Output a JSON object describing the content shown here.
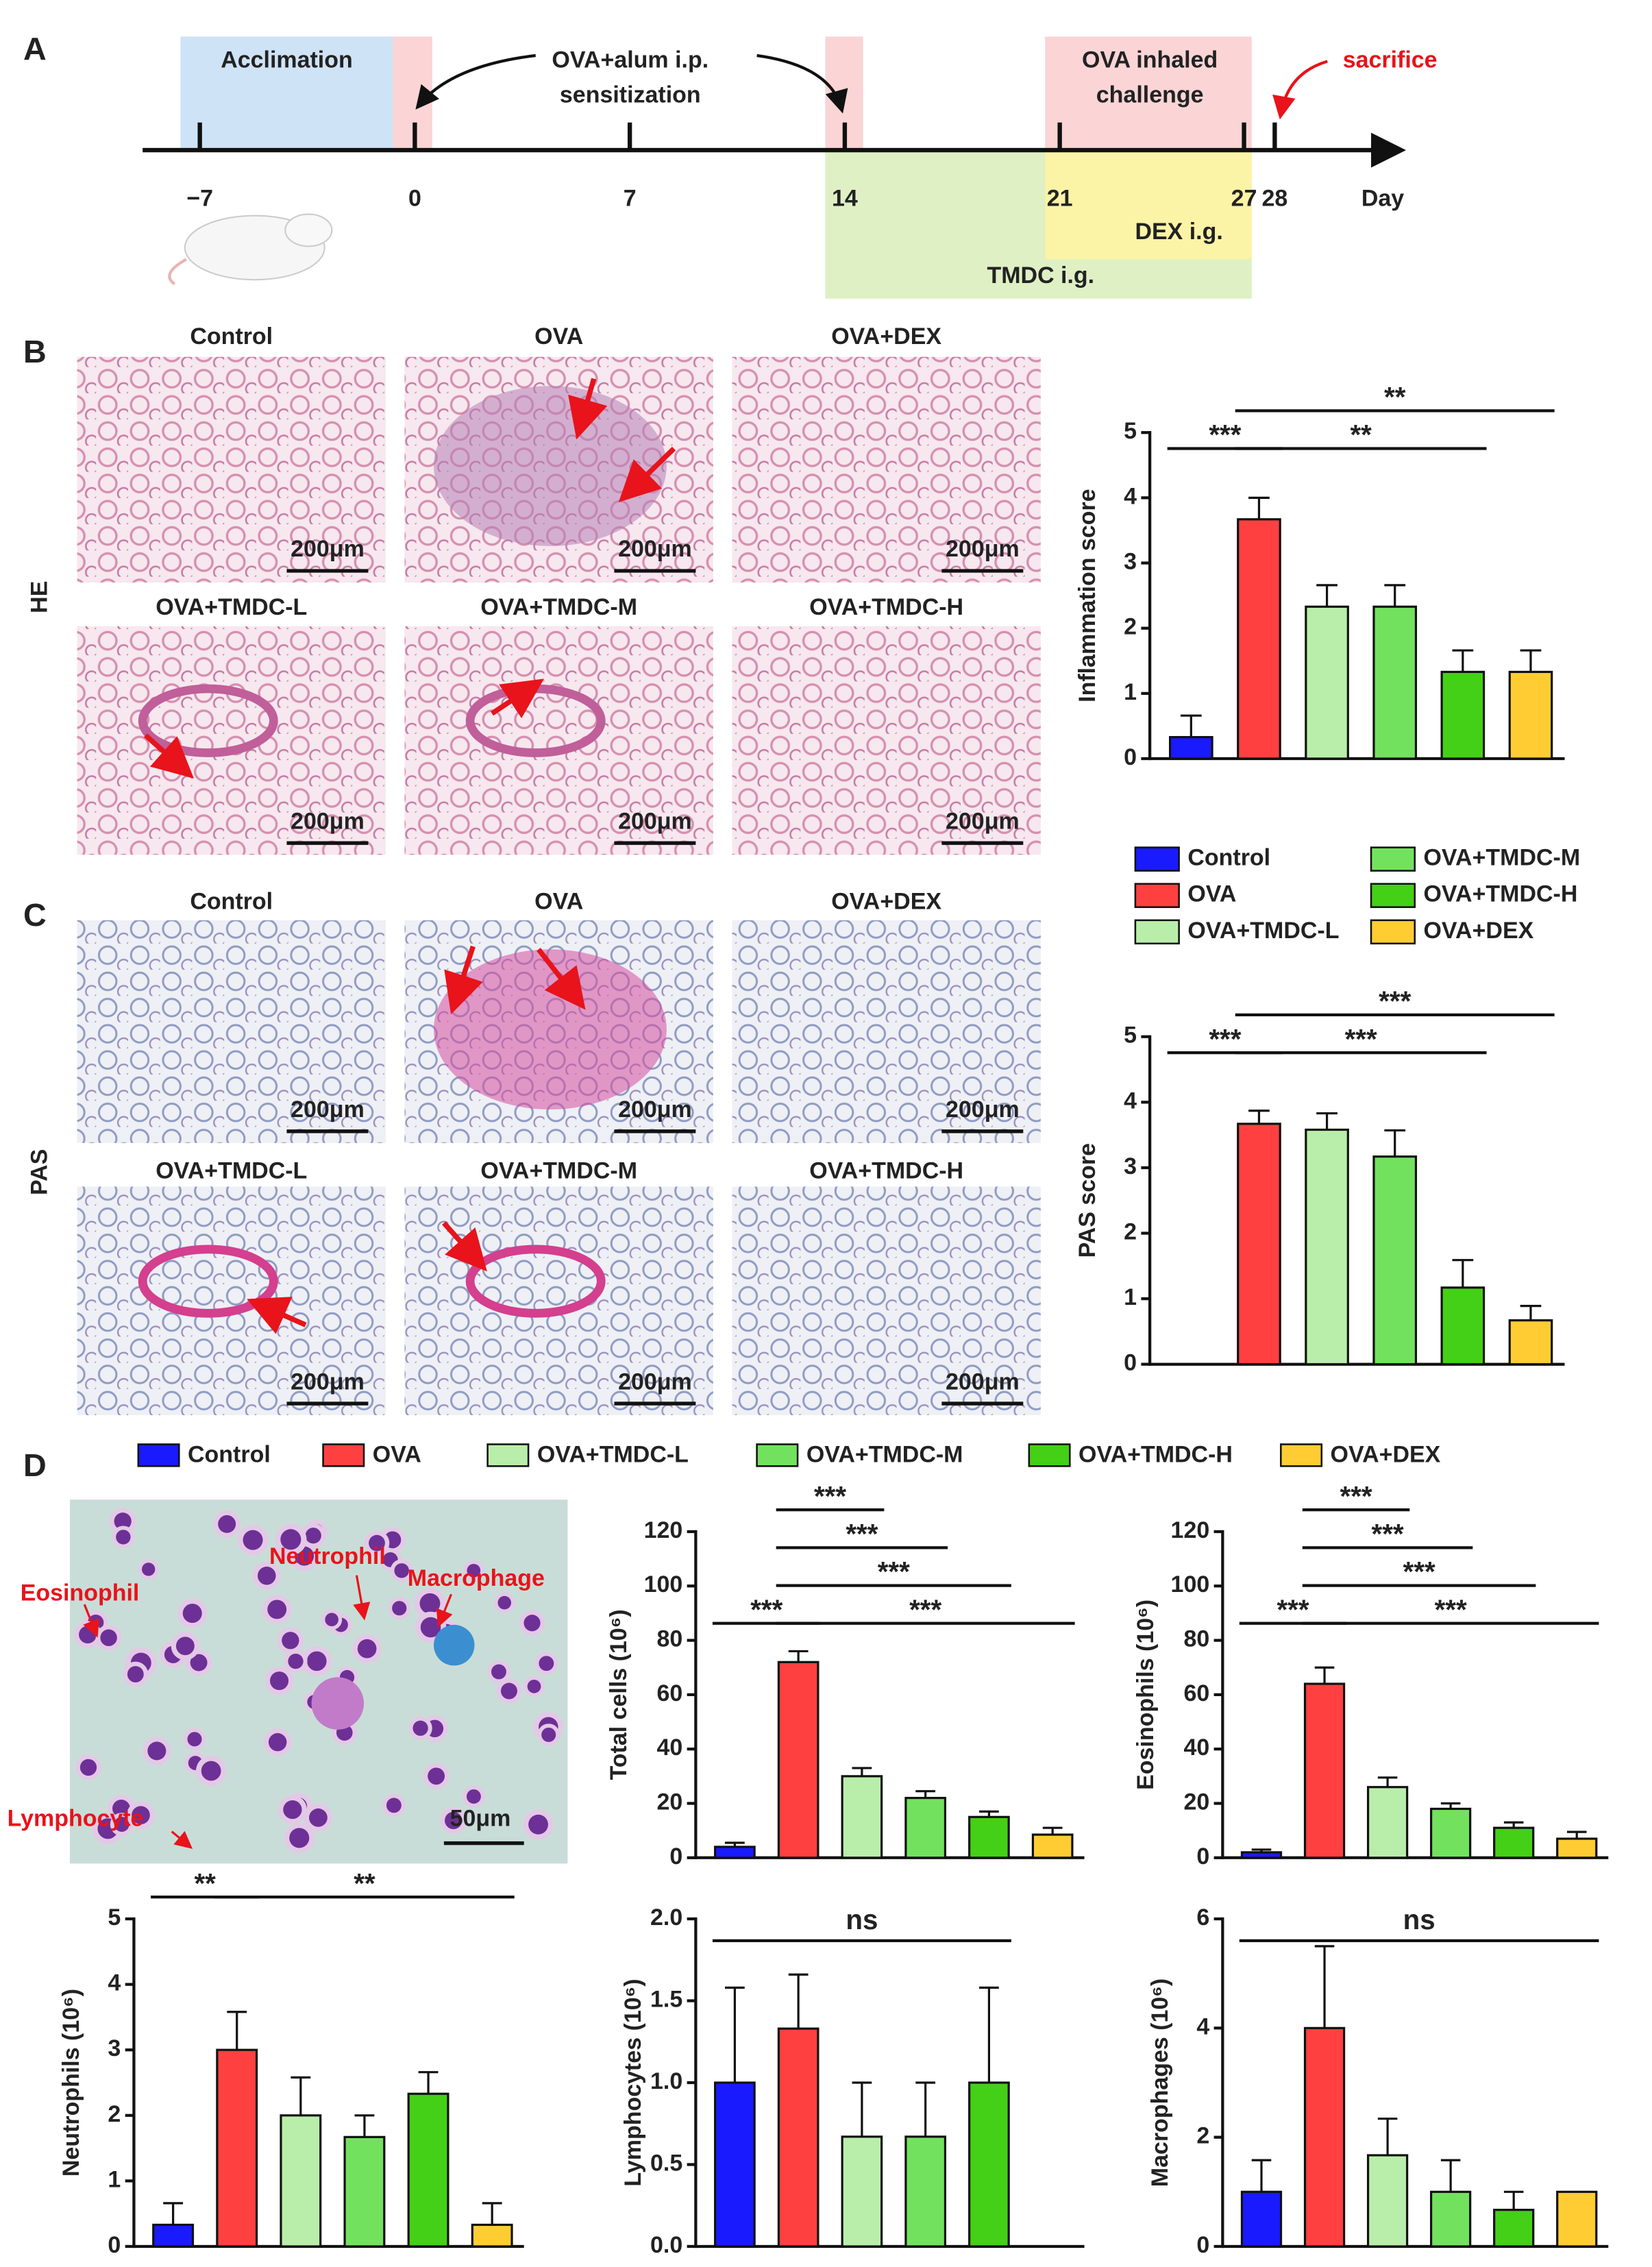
{
  "letters": [
    "A",
    "B",
    "C",
    "D"
  ],
  "timeline": {
    "acclimation": "Acclimation",
    "sensitization": [
      "OVA+alum i.p.",
      "sensitization"
    ],
    "challenge": [
      "OVA inhaled",
      "challenge"
    ],
    "sacrifice": "sacrifice",
    "days": [
      {
        "value": -7,
        "label": "−7"
      },
      0,
      7,
      14,
      21,
      27,
      28
    ],
    "unit": "Day",
    "dex": "DEX i.g.",
    "tmdc": "TMDC i.g."
  },
  "panels": {
    "he": {
      "label": "HE",
      "images": [
        {
          "title": "Control",
          "scale": "200μm"
        },
        {
          "title": "OVA",
          "scale": "200μm"
        },
        {
          "title": "OVA+DEX",
          "scale": "200μm"
        },
        {
          "title": "OVA+TMDC-L",
          "scale": "200μm"
        },
        {
          "title": "OVA+TMDC-M",
          "scale": "200μm"
        },
        {
          "title": "OVA+TMDC-H",
          "scale": "200μm"
        }
      ]
    },
    "pas": {
      "label": "PAS",
      "images": [
        {
          "title": "Control",
          "scale": "200μm"
        },
        {
          "title": "OVA",
          "scale": "200μm"
        },
        {
          "title": "OVA+DEX",
          "scale": "200μm"
        },
        {
          "title": "OVA+TMDC-L",
          "scale": "200μm"
        },
        {
          "title": "OVA+TMDC-M",
          "scale": "200μm"
        },
        {
          "title": "OVA+TMDC-H",
          "scale": "200μm"
        }
      ]
    }
  },
  "cytospin": {
    "labels": [
      "Eosinophil",
      "Neutrophil",
      "Macrophage",
      "Lymphocyte"
    ],
    "scale": "50μm"
  },
  "chart_data": [
    {
      "type": "bar",
      "y_label": "Inflammation score",
      "categories": [
        "Control",
        "OVA",
        "OVA+TMDC-L",
        "OVA+TMDC-M",
        "OVA+TMDC-H",
        "OVA+DEX"
      ],
      "colors": [
        "#1a1aff",
        "#ff4040",
        "#b9eeaa",
        "#72e25e",
        "#44d016",
        "#ffcc33"
      ],
      "values": [
        0.33,
        3.67,
        2.33,
        2.33,
        1.33,
        1.33
      ],
      "errors": [
        0.33,
        0.33,
        0.33,
        0.33,
        0.33,
        0.33
      ],
      "ylim": [
        0,
        5
      ],
      "yticks": [
        0,
        1,
        2,
        3,
        4,
        5
      ],
      "significance": [
        {
          "from": 0,
          "to": 1,
          "label": "***"
        },
        {
          "from": 1,
          "to": 4,
          "label": "**"
        },
        {
          "from": 1,
          "to": 5,
          "label": "**"
        }
      ]
    },
    {
      "type": "bar",
      "y_label": "PAS score",
      "categories": [
        "Control",
        "OVA",
        "OVA+TMDC-L",
        "OVA+TMDC-M",
        "OVA+TMDC-H",
        "OVA+DEX"
      ],
      "colors": [
        "#1a1aff",
        "#ff4040",
        "#b9eeaa",
        "#72e25e",
        "#44d016",
        "#ffcc33"
      ],
      "values": [
        0,
        3.67,
        3.58,
        3.17,
        1.17,
        0.67
      ],
      "errors": [
        null,
        0.2,
        0.25,
        0.4,
        0.42,
        0.22
      ],
      "ylim": [
        0,
        5
      ],
      "yticks": [
        0,
        1,
        2,
        3,
        4,
        5
      ],
      "significance": [
        {
          "from": 0,
          "to": 1,
          "label": "***"
        },
        {
          "from": 1,
          "to": 4,
          "label": "***"
        },
        {
          "from": 1,
          "to": 5,
          "label": "***"
        }
      ]
    },
    {
      "type": "bar",
      "y_label": "Total cells (10⁶)",
      "categories": [
        "Control",
        "OVA",
        "OVA+TMDC-L",
        "OVA+TMDC-M",
        "OVA+TMDC-H",
        "OVA+DEX"
      ],
      "colors": [
        "#1a1aff",
        "#ff4040",
        "#b9eeaa",
        "#72e25e",
        "#44d016",
        "#ffcc33"
      ],
      "values": [
        4,
        72,
        30,
        22,
        15,
        8.5
      ],
      "errors": [
        1.5,
        4,
        3,
        2.5,
        2,
        2.5
      ],
      "ylim": [
        0,
        120
      ],
      "yticks": [
        0,
        20,
        40,
        60,
        80,
        100,
        120
      ],
      "significance": [
        {
          "from": 0,
          "to": 1,
          "label": "***"
        },
        {
          "from": 1,
          "to": 5,
          "label": "***"
        },
        {
          "from": 1,
          "to": 4,
          "label": "***"
        },
        {
          "from": 1,
          "to": 3,
          "label": "***"
        },
        {
          "from": 1,
          "to": 2,
          "label": "***"
        }
      ]
    },
    {
      "type": "bar",
      "y_label": "Eosinophils (10⁶)",
      "categories": [
        "Control",
        "OVA",
        "OVA+TMDC-L",
        "OVA+TMDC-M",
        "OVA+TMDC-H",
        "OVA+DEX"
      ],
      "colors": [
        "#1a1aff",
        "#ff4040",
        "#b9eeaa",
        "#72e25e",
        "#44d016",
        "#ffcc33"
      ],
      "values": [
        2,
        64,
        26,
        18,
        11,
        7
      ],
      "errors": [
        1,
        6,
        3.5,
        2,
        2,
        2.5
      ],
      "ylim": [
        0,
        120
      ],
      "yticks": [
        0,
        20,
        40,
        60,
        80,
        100,
        120
      ],
      "significance": [
        {
          "from": 0,
          "to": 1,
          "label": "***"
        },
        {
          "from": 1,
          "to": 5,
          "label": "***"
        },
        {
          "from": 1,
          "to": 4,
          "label": "***"
        },
        {
          "from": 1,
          "to": 3,
          "label": "***"
        },
        {
          "from": 1,
          "to": 2,
          "label": "***"
        }
      ]
    },
    {
      "type": "bar",
      "y_label": "Neutrophils (10⁶)",
      "categories": [
        "Control",
        "OVA",
        "OVA+TMDC-L",
        "OVA+TMDC-M",
        "OVA+TMDC-H",
        "OVA+DEX"
      ],
      "colors": [
        "#1a1aff",
        "#ff4040",
        "#b9eeaa",
        "#72e25e",
        "#44d016",
        "#ffcc33"
      ],
      "values": [
        0.33,
        3.0,
        2.0,
        1.67,
        2.33,
        0.33
      ],
      "errors": [
        0.33,
        0.58,
        0.58,
        0.33,
        0.33,
        0.33
      ],
      "ylim": [
        0,
        5
      ],
      "yticks": [
        0,
        1,
        2,
        3,
        4,
        5
      ],
      "significance": [
        {
          "from": 0,
          "to": 1,
          "label": "**"
        },
        {
          "from": 1,
          "to": 5,
          "label": "**"
        }
      ]
    },
    {
      "type": "bar",
      "y_label": "Lymphocytes (10⁶)",
      "categories": [
        "Control",
        "OVA",
        "OVA+TMDC-L",
        "OVA+TMDC-M",
        "OVA+TMDC-H",
        "OVA+DEX"
      ],
      "colors": [
        "#1a1aff",
        "#ff4040",
        "#b9eeaa",
        "#72e25e",
        "#44d016",
        "#ffcc33"
      ],
      "values": [
        1.0,
        1.33,
        0.67,
        0.67,
        1.0,
        null
      ],
      "errors": [
        0.58,
        0.33,
        0.33,
        0.33,
        0.58,
        null
      ],
      "ylim": [
        0,
        2
      ],
      "yticks": [
        {
          "value": 0,
          "label": "0.0"
        },
        0.5,
        {
          "value": 1,
          "label": "1.0"
        },
        1.5,
        {
          "value": 2,
          "label": "2.0"
        }
      ],
      "significance": [
        {
          "from": 0,
          "to": 4,
          "label": "ns"
        }
      ]
    },
    {
      "type": "bar",
      "y_label": "Macrophages (10⁶)",
      "categories": [
        "Control",
        "OVA",
        "OVA+TMDC-L",
        "OVA+TMDC-M",
        "OVA+TMDC-H",
        "OVA+DEX"
      ],
      "colors": [
        "#1a1aff",
        "#ff4040",
        "#b9eeaa",
        "#72e25e",
        "#44d016",
        "#ffcc33"
      ],
      "values": [
        1,
        4,
        1.67,
        1,
        0.67,
        1
      ],
      "errors": [
        0.58,
        1.5,
        0.67,
        0.58,
        0.33,
        null
      ],
      "ylim": [
        0,
        6
      ],
      "yticks": [
        0,
        2,
        4,
        6
      ],
      "significance": [
        {
          "from": 0,
          "to": 5,
          "label": "ns"
        }
      ]
    }
  ]
}
